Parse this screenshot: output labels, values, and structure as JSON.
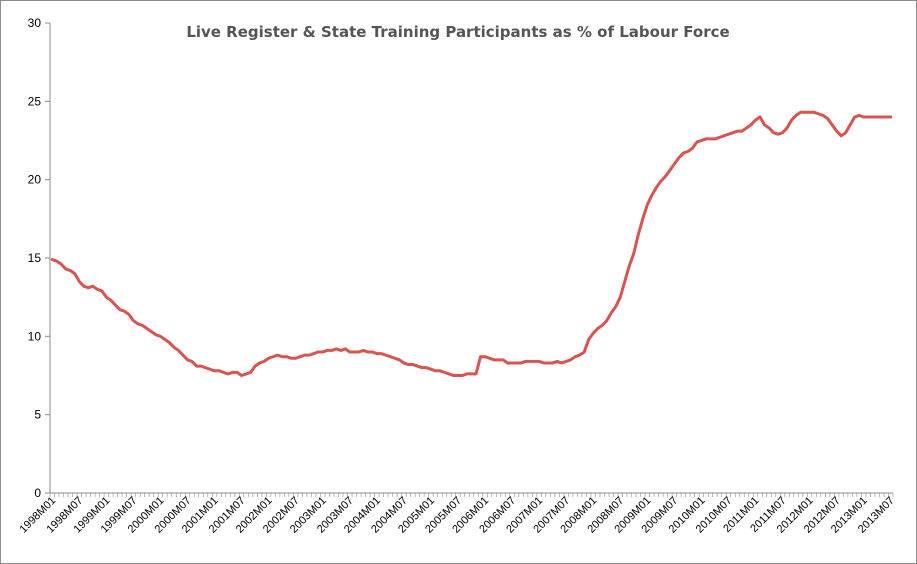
{
  "chart_data": {
    "type": "line",
    "title": "Live Register & State Training Participants as % of Labour Force",
    "xlabel": "",
    "ylabel": "",
    "ylim": [
      0,
      30
    ],
    "yticks": [
      0,
      5,
      10,
      15,
      20,
      25,
      30
    ],
    "grid": false,
    "legend": "none",
    "line_color": "#d9534f",
    "x_tick_labels": [
      "1998M01",
      "1998M07",
      "1999M01",
      "1999M07",
      "2000M01",
      "2000M07",
      "2001M01",
      "2001M07",
      "2002M01",
      "2002M07",
      "2003M01",
      "2003M07",
      "2004M01",
      "2004M07",
      "2005M01",
      "2005M07",
      "2006M01",
      "2006M07",
      "2007M01",
      "2007M07",
      "2008M01",
      "2008M07",
      "2009M01",
      "2009M07",
      "2010M01",
      "2010M07",
      "2011M01",
      "2011M07",
      "2012M01",
      "2012M07",
      "2013M01",
      "2013M07"
    ],
    "series": [
      {
        "name": "",
        "x_start": "1998M01",
        "frequency": "monthly",
        "values": [
          14.9,
          14.8,
          14.6,
          14.3,
          14.2,
          14.0,
          13.5,
          13.2,
          13.1,
          13.2,
          13.0,
          12.9,
          12.5,
          12.3,
          12.0,
          11.7,
          11.6,
          11.4,
          11.0,
          10.8,
          10.7,
          10.5,
          10.3,
          10.1,
          10.0,
          9.8,
          9.6,
          9.3,
          9.1,
          8.8,
          8.5,
          8.4,
          8.1,
          8.1,
          8.0,
          7.9,
          7.8,
          7.8,
          7.7,
          7.6,
          7.7,
          7.7,
          7.5,
          7.6,
          7.7,
          8.1,
          8.3,
          8.4,
          8.6,
          8.7,
          8.8,
          8.7,
          8.7,
          8.6,
          8.6,
          8.7,
          8.8,
          8.8,
          8.9,
          9.0,
          9.0,
          9.1,
          9.1,
          9.2,
          9.1,
          9.2,
          9.0,
          9.0,
          9.0,
          9.1,
          9.0,
          9.0,
          8.9,
          8.9,
          8.8,
          8.7,
          8.6,
          8.5,
          8.3,
          8.2,
          8.2,
          8.1,
          8.0,
          8.0,
          7.9,
          7.8,
          7.8,
          7.7,
          7.6,
          7.5,
          7.5,
          7.5,
          7.6,
          7.6,
          7.6,
          8.7,
          8.7,
          8.6,
          8.5,
          8.5,
          8.5,
          8.3,
          8.3,
          8.3,
          8.3,
          8.4,
          8.4,
          8.4,
          8.4,
          8.3,
          8.3,
          8.3,
          8.4,
          8.3,
          8.4,
          8.5,
          8.7,
          8.8,
          9.0,
          9.8,
          10.2,
          10.5,
          10.7,
          11.0,
          11.5,
          11.9,
          12.5,
          13.5,
          14.5,
          15.3,
          16.5,
          17.5,
          18.4,
          19.0,
          19.5,
          19.9,
          20.2,
          20.6,
          21.0,
          21.4,
          21.7,
          21.8,
          22.0,
          22.4,
          22.5,
          22.6,
          22.6,
          22.6,
          22.7,
          22.8,
          22.9,
          23.0,
          23.1,
          23.1,
          23.3,
          23.5,
          23.8,
          24.0,
          23.5,
          23.3,
          23.0,
          22.9,
          23.0,
          23.3,
          23.8,
          24.1,
          24.3,
          24.3,
          24.3,
          24.3,
          24.2,
          24.1,
          23.9,
          23.5,
          23.1,
          22.8,
          23.0,
          23.5,
          24.0,
          24.1,
          24.0,
          24.0,
          24.0,
          24.0,
          24.0,
          24.0,
          24.0
        ]
      }
    ]
  }
}
